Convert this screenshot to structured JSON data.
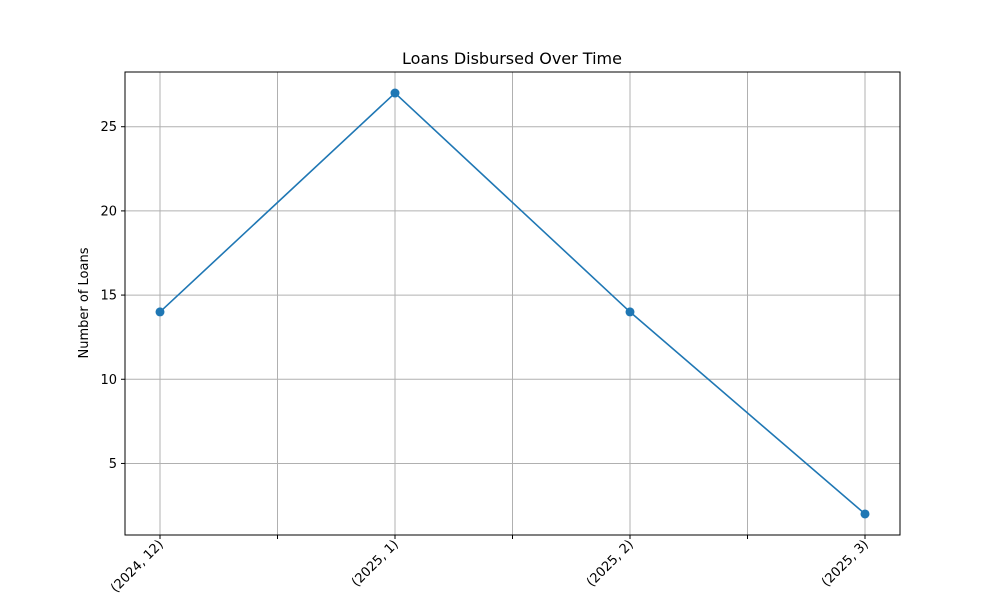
{
  "chart_data": {
    "type": "line",
    "title": "Loans Disbursed Over Time",
    "xlabel": "",
    "ylabel": "Number of Loans",
    "categories": [
      "(2024, 12)",
      "(2025, 1)",
      "(2025, 2)",
      "(2025, 3)"
    ],
    "series": [
      {
        "values": [
          14,
          27,
          14,
          2
        ],
        "color": "#1f77b4",
        "marker": "circle"
      }
    ],
    "y_ticks": [
      5,
      10,
      15,
      20,
      25
    ],
    "ylim": [
      0.75,
      28.25
    ],
    "grid": true,
    "colors": {
      "line": "#1f77b4",
      "grid": "#b0b0b0",
      "axes": "#000000"
    }
  }
}
